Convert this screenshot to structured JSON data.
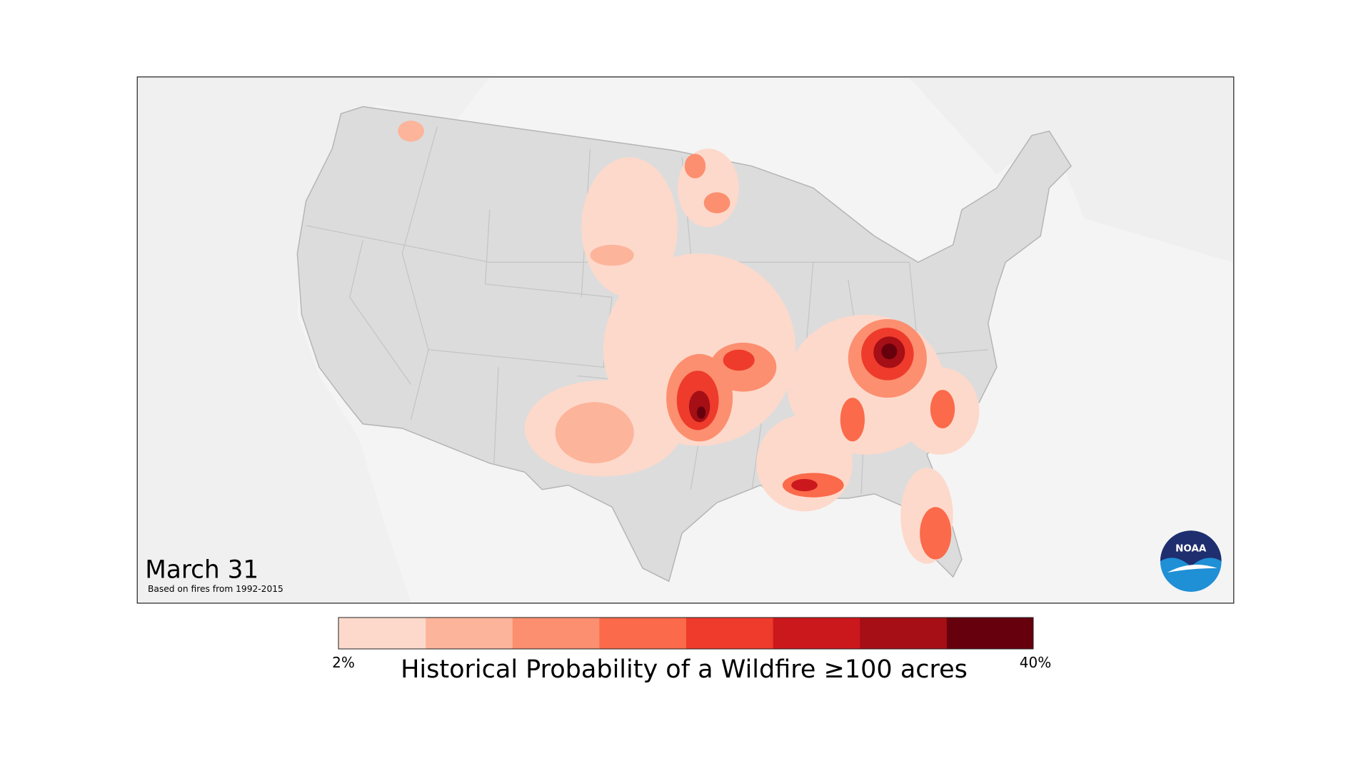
{
  "map": {
    "date": "March 31",
    "note": "Based on fires from 1992-2015",
    "logo": "NOAA"
  },
  "legend": {
    "title": "Historical Probability of a Wildfire ≥100 acres",
    "min_label": "2%",
    "max_label": "40%",
    "colors": [
      "#fdd9cb",
      "#fcb49b",
      "#fc8f6f",
      "#fb6a4a",
      "#ee3b2c",
      "#cb181d",
      "#a50f15",
      "#67000d"
    ]
  }
}
